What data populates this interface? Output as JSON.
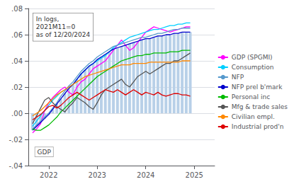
{
  "chart_data": {
    "type": "line",
    "annotations": [
      {
        "text": "In logs,\n2021M11=0\nas of 12/20/2024"
      },
      {
        "text": "GDP"
      }
    ],
    "x": [
      2021.6667,
      2021.75,
      2021.8333,
      2021.9167,
      2022,
      2022.0833,
      2022.1667,
      2022.25,
      2022.3333,
      2022.4167,
      2022.5,
      2022.5833,
      2022.6667,
      2022.75,
      2022.8333,
      2022.9167,
      2023,
      2023.0833,
      2023.1667,
      2023.25,
      2023.3333,
      2023.4167,
      2023.5,
      2023.5833,
      2023.6667,
      2023.75,
      2023.8333,
      2023.9167,
      2024,
      2024.0833,
      2024.1667,
      2024.25,
      2024.3333,
      2024.4167,
      2024.5,
      2024.5833,
      2024.6667,
      2024.75,
      2024.8333,
      2024.9167
    ],
    "series": [
      {
        "type": "bar",
        "color": "#b8d0e8",
        "values": [
          -0.013,
          -0.01,
          -0.007,
          -0.004,
          -0.001,
          0.003,
          0.007,
          0.011,
          0.015,
          0.019,
          0.022,
          0.026,
          0.03,
          0.033,
          0.036,
          0.038,
          0.041,
          0.043,
          0.045,
          0.047,
          0.049,
          0.05,
          0.051,
          0.052,
          0.053,
          0.054,
          0.055,
          0.056,
          0.057,
          0.057,
          0.058,
          0.059,
          0.059,
          0.06,
          0.06,
          0.061,
          0.061,
          0.062,
          0.062,
          0.062
        ]
      },
      {
        "name": "GDP (SPGMI)",
        "color": "#ff00ff",
        "values": [
          -0.015,
          -0.012,
          -0.008,
          0.002,
          0.008,
          0.012,
          0.015,
          0.018,
          0.02,
          0.016,
          0.014,
          0.02,
          0.024,
          0.026,
          0.03,
          0.034,
          0.036,
          0.038,
          0.04,
          0.044,
          0.048,
          0.052,
          0.056,
          0.052,
          0.048,
          0.05,
          0.054,
          0.058,
          0.062,
          0.064,
          0.066,
          0.065,
          0.064,
          0.063,
          0.062,
          0.063,
          0.064,
          0.065,
          0.066,
          0.066
        ]
      },
      {
        "name": "Consumption",
        "color": "#00cfff",
        "values": [
          -0.01,
          -0.006,
          -0.002,
          0.002,
          0.006,
          0.01,
          0.013,
          0.016,
          0.018,
          0.02,
          0.022,
          0.026,
          0.03,
          0.033,
          0.036,
          0.038,
          0.04,
          0.042,
          0.044,
          0.047,
          0.05,
          0.052,
          0.054,
          0.056,
          0.058,
          0.059,
          0.06,
          0.061,
          0.062,
          0.063,
          0.064,
          0.064,
          0.065,
          0.066,
          0.067,
          0.067,
          0.068,
          0.068,
          0.069,
          0.069
        ]
      },
      {
        "name": "NFP",
        "color": "#5599cc",
        "values": [
          -0.012,
          -0.009,
          -0.006,
          -0.003,
          0.0,
          0.004,
          0.008,
          0.013,
          0.017,
          0.021,
          0.024,
          0.028,
          0.032,
          0.035,
          0.038,
          0.04,
          0.043,
          0.045,
          0.047,
          0.049,
          0.051,
          0.052,
          0.053,
          0.054,
          0.055,
          0.056,
          0.057,
          0.058,
          0.058,
          0.059,
          0.06,
          0.061,
          0.061,
          0.062,
          0.063,
          0.064,
          0.064,
          0.065,
          0.065,
          0.065
        ]
      },
      {
        "name": "NFP prel b'mark",
        "color": "#0000cc",
        "values": [
          -0.013,
          -0.01,
          -0.007,
          -0.004,
          -0.001,
          0.003,
          0.007,
          0.011,
          0.015,
          0.019,
          0.022,
          0.026,
          0.03,
          0.033,
          0.036,
          0.038,
          0.041,
          0.043,
          0.045,
          0.047,
          0.049,
          0.05,
          0.051,
          0.052,
          0.053,
          0.054,
          0.055,
          0.056,
          0.057,
          0.057,
          0.058,
          0.059,
          0.059,
          0.06,
          0.06,
          0.061,
          0.061,
          0.062,
          0.062,
          0.062
        ]
      },
      {
        "name": "Personal inc",
        "color": "#00bb00",
        "values": [
          -0.012,
          -0.013,
          -0.013,
          -0.011,
          -0.009,
          -0.006,
          -0.003,
          0.001,
          0.004,
          0.007,
          0.01,
          0.013,
          0.016,
          0.019,
          0.022,
          0.025,
          0.028,
          0.03,
          0.032,
          0.034,
          0.036,
          0.038,
          0.04,
          0.041,
          0.042,
          0.043,
          0.044,
          0.044,
          0.045,
          0.045,
          0.046,
          0.046,
          0.046,
          0.046,
          0.047,
          0.047,
          0.047,
          0.048,
          0.048,
          0.048
        ]
      },
      {
        "name": "Mfg & trade sales",
        "color": "#555555",
        "values": [
          -0.008,
          -0.002,
          0.004,
          0.01,
          0.012,
          0.008,
          0.005,
          0.003,
          0.001,
          0.005,
          0.008,
          0.012,
          0.01,
          0.008,
          0.005,
          0.003,
          0.008,
          0.014,
          0.018,
          0.02,
          0.022,
          0.024,
          0.026,
          0.022,
          0.02,
          0.024,
          0.028,
          0.03,
          0.032,
          0.03,
          0.032,
          0.034,
          0.036,
          0.038,
          0.038,
          0.04,
          0.04,
          0.042,
          0.044,
          0.046
        ]
      },
      {
        "name": "Civilian empl.",
        "color": "#ff8800",
        "values": [
          -0.002,
          0.0,
          0.002,
          0.005,
          0.008,
          0.011,
          0.014,
          0.016,
          0.018,
          0.02,
          0.022,
          0.024,
          0.026,
          0.028,
          0.029,
          0.03,
          0.031,
          0.032,
          0.033,
          0.034,
          0.035,
          0.036,
          0.037,
          0.037,
          0.037,
          0.038,
          0.038,
          0.038,
          0.038,
          0.039,
          0.039,
          0.039,
          0.039,
          0.039,
          0.039,
          0.039,
          0.039,
          0.04,
          0.04,
          0.04
        ]
      },
      {
        "name": "Industrial prod'n",
        "color": "#dd0000",
        "values": [
          -0.005,
          -0.003,
          -0.001,
          0.002,
          0.005,
          0.006,
          0.004,
          0.006,
          0.009,
          0.012,
          0.014,
          0.016,
          0.014,
          0.012,
          0.01,
          0.012,
          0.014,
          0.016,
          0.018,
          0.017,
          0.016,
          0.018,
          0.016,
          0.014,
          0.016,
          0.018,
          0.016,
          0.014,
          0.016,
          0.015,
          0.014,
          0.016,
          0.014,
          0.013,
          0.014,
          0.015,
          0.015,
          0.014,
          0.014,
          0.013
        ]
      }
    ],
    "xlim": [
      2021.58,
      2025.42
    ],
    "xticks": [
      2022,
      2023,
      2024,
      2025
    ],
    "ylim": [
      -0.04,
      0.08
    ],
    "yticks": [
      {
        "value": -0.04,
        "label": "-.04"
      },
      {
        "value": -0.02,
        "label": "-.02"
      },
      {
        "value": 0.0,
        "label": ".00"
      },
      {
        "value": 0.02,
        "label": ".02"
      },
      {
        "value": 0.04,
        "label": ".04"
      },
      {
        "value": 0.06,
        "label": ".06"
      },
      {
        "value": 0.08,
        "label": ".08"
      }
    ],
    "grid": true,
    "legend": "right"
  }
}
